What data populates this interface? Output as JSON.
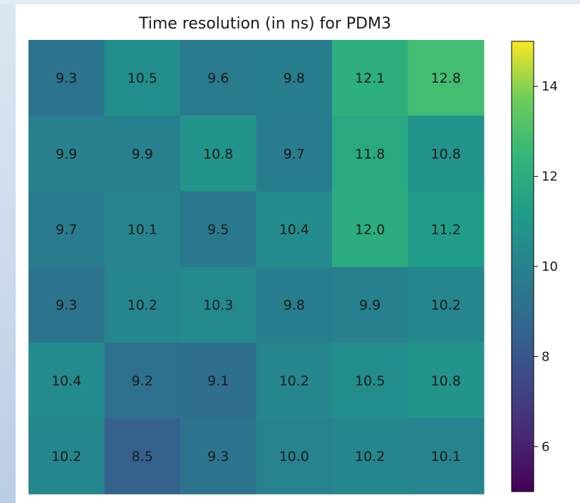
{
  "chart_data": {
    "type": "heatmap",
    "title": "Time resolution (in ns) for PDM3",
    "colormap": "viridis",
    "vmin": 5,
    "vmax": 15,
    "rows": [
      [
        9.3,
        10.5,
        9.6,
        9.8,
        12.1,
        12.8
      ],
      [
        9.9,
        9.9,
        10.8,
        9.7,
        11.8,
        10.8
      ],
      [
        9.7,
        10.1,
        9.5,
        10.4,
        12.0,
        11.2
      ],
      [
        9.3,
        10.2,
        10.3,
        9.8,
        9.9,
        10.2
      ],
      [
        10.4,
        9.2,
        9.1,
        10.2,
        10.5,
        10.8
      ],
      [
        10.2,
        8.5,
        9.3,
        10.0,
        10.2,
        10.1
      ]
    ],
    "labels": [
      [
        "9.3",
        "10.5",
        "9.6",
        "9.8",
        "12.1",
        "12.8"
      ],
      [
        "9.9",
        "9.9",
        "10.8",
        "9.7",
        "11.8",
        "10.8"
      ],
      [
        "9.7",
        "10.1",
        "9.5",
        "10.4",
        "12.0",
        "11.2"
      ],
      [
        "9.3",
        "10.2",
        "10.3",
        "9.8",
        "9.9",
        "10.2"
      ],
      [
        "10.4",
        "9.2",
        "9.1",
        "10.2",
        "10.5",
        "10.8"
      ],
      [
        "10.2",
        "8.5",
        "9.3",
        "10.0",
        "10.2",
        "10.1"
      ]
    ],
    "colorbar_ticks": [
      6,
      8,
      10,
      12,
      14
    ],
    "colorbar_tick_labels": [
      "6",
      "8",
      "10",
      "12",
      "14"
    ]
  }
}
